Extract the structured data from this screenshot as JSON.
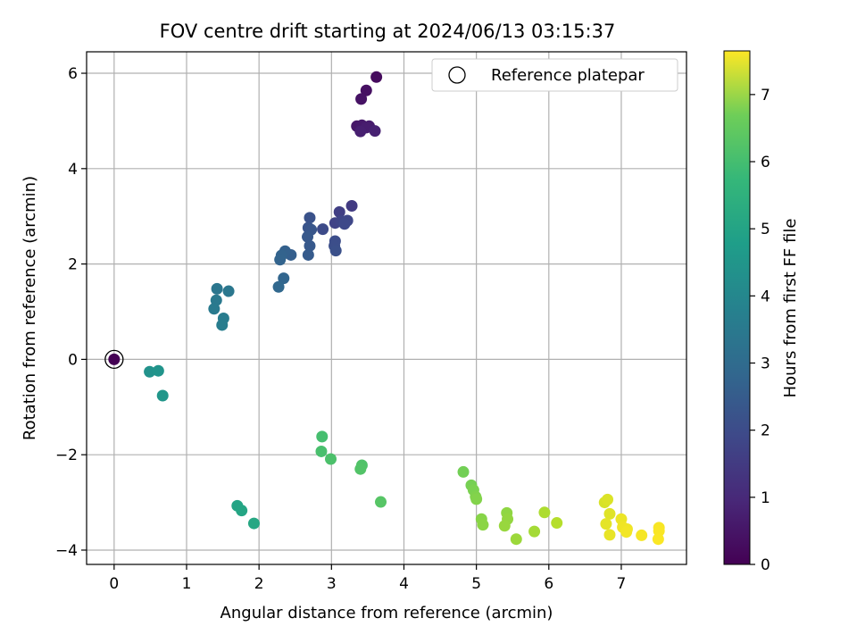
{
  "chart_data": {
    "type": "scatter",
    "title": "FOV centre drift starting at 2024/06/13 03:15:37",
    "xlabel": "Angular distance from reference (arcmin)",
    "ylabel": "Rotation from reference (arcmin)",
    "xlim": [
      -0.38,
      7.9
    ],
    "ylim": [
      -4.3,
      6.45
    ],
    "xticks": [
      0,
      1,
      2,
      3,
      4,
      5,
      6,
      7
    ],
    "yticks": [
      -4,
      -2,
      0,
      2,
      4,
      6
    ],
    "xtick_labels": [
      "0",
      "1",
      "2",
      "3",
      "4",
      "5",
      "6",
      "7"
    ],
    "ytick_labels": [
      "−4",
      "−2",
      "0",
      "2",
      "4",
      "6"
    ],
    "grid": true,
    "legend": {
      "label": "Reference platepar",
      "placement": "top-right"
    },
    "colorbar": {
      "label": "Hours from first FF file",
      "range": [
        0,
        7.65
      ],
      "ticks": [
        0,
        1,
        2,
        3,
        4,
        5,
        6,
        7
      ],
      "tick_labels": [
        "0",
        "1",
        "2",
        "3",
        "4",
        "5",
        "6",
        "7"
      ],
      "colormap": "viridis"
    },
    "reference_point": {
      "x": 0,
      "y": 0
    },
    "points": [
      {
        "x": 0.0,
        "y": 0.0,
        "c": 0.0
      },
      {
        "x": 3.62,
        "y": 5.92,
        "c": 0.22
      },
      {
        "x": 3.48,
        "y": 5.64,
        "c": 0.32
      },
      {
        "x": 3.41,
        "y": 5.46,
        "c": 0.38
      },
      {
        "x": 3.35,
        "y": 4.89,
        "c": 0.48
      },
      {
        "x": 3.42,
        "y": 4.91,
        "c": 0.52
      },
      {
        "x": 3.52,
        "y": 4.89,
        "c": 0.58
      },
      {
        "x": 3.48,
        "y": 4.86,
        "c": 0.62
      },
      {
        "x": 3.4,
        "y": 4.78,
        "c": 0.66
      },
      {
        "x": 3.6,
        "y": 4.79,
        "c": 0.7
      },
      {
        "x": 3.28,
        "y": 3.22,
        "c": 1.35
      },
      {
        "x": 3.11,
        "y": 3.09,
        "c": 1.45
      },
      {
        "x": 3.05,
        "y": 2.86,
        "c": 1.55
      },
      {
        "x": 3.13,
        "y": 2.9,
        "c": 1.6
      },
      {
        "x": 3.22,
        "y": 2.91,
        "c": 1.65
      },
      {
        "x": 3.18,
        "y": 2.84,
        "c": 1.7
      },
      {
        "x": 2.88,
        "y": 2.73,
        "c": 1.75
      },
      {
        "x": 3.05,
        "y": 2.48,
        "c": 1.8
      },
      {
        "x": 3.04,
        "y": 2.38,
        "c": 1.85
      },
      {
        "x": 3.06,
        "y": 2.28,
        "c": 1.9
      },
      {
        "x": 2.7,
        "y": 2.97,
        "c": 1.95
      },
      {
        "x": 2.68,
        "y": 2.76,
        "c": 2.0
      },
      {
        "x": 2.72,
        "y": 2.72,
        "c": 2.05
      },
      {
        "x": 2.67,
        "y": 2.57,
        "c": 2.1
      },
      {
        "x": 2.7,
        "y": 2.38,
        "c": 2.15
      },
      {
        "x": 2.68,
        "y": 2.19,
        "c": 2.2
      },
      {
        "x": 2.44,
        "y": 2.19,
        "c": 2.3
      },
      {
        "x": 2.36,
        "y": 2.27,
        "c": 2.35
      },
      {
        "x": 2.31,
        "y": 2.18,
        "c": 2.4
      },
      {
        "x": 2.29,
        "y": 2.09,
        "c": 2.45
      },
      {
        "x": 2.34,
        "y": 1.7,
        "c": 2.5
      },
      {
        "x": 2.27,
        "y": 1.52,
        "c": 2.55
      },
      {
        "x": 1.42,
        "y": 1.48,
        "c": 3.0
      },
      {
        "x": 1.58,
        "y": 1.43,
        "c": 3.05
      },
      {
        "x": 1.41,
        "y": 1.24,
        "c": 3.1
      },
      {
        "x": 1.38,
        "y": 1.06,
        "c": 3.15
      },
      {
        "x": 1.51,
        "y": 0.86,
        "c": 3.2
      },
      {
        "x": 1.49,
        "y": 0.72,
        "c": 3.25
      },
      {
        "x": 0.49,
        "y": -0.26,
        "c": 3.9
      },
      {
        "x": 0.61,
        "y": -0.24,
        "c": 3.95
      },
      {
        "x": 0.67,
        "y": -0.76,
        "c": 4.0
      },
      {
        "x": 1.7,
        "y": -3.07,
        "c": 4.45
      },
      {
        "x": 1.76,
        "y": -3.17,
        "c": 4.5
      },
      {
        "x": 1.93,
        "y": -3.44,
        "c": 4.55
      },
      {
        "x": 2.87,
        "y": -1.62,
        "c": 5.35
      },
      {
        "x": 2.86,
        "y": -1.93,
        "c": 5.4
      },
      {
        "x": 2.99,
        "y": -2.09,
        "c": 5.45
      },
      {
        "x": 3.42,
        "y": -2.22,
        "c": 5.5
      },
      {
        "x": 3.4,
        "y": -2.3,
        "c": 5.55
      },
      {
        "x": 3.68,
        "y": -2.99,
        "c": 5.6
      },
      {
        "x": 4.82,
        "y": -2.36,
        "c": 6.0
      },
      {
        "x": 4.93,
        "y": -2.64,
        "c": 6.05
      },
      {
        "x": 4.96,
        "y": -2.74,
        "c": 6.1
      },
      {
        "x": 4.99,
        "y": -2.88,
        "c": 6.15
      },
      {
        "x": 5.0,
        "y": -2.93,
        "c": 6.2
      },
      {
        "x": 5.07,
        "y": -3.35,
        "c": 6.25
      },
      {
        "x": 5.09,
        "y": -3.47,
        "c": 6.3
      },
      {
        "x": 5.42,
        "y": -3.22,
        "c": 6.35
      },
      {
        "x": 5.43,
        "y": -3.35,
        "c": 6.4
      },
      {
        "x": 5.39,
        "y": -3.49,
        "c": 6.45
      },
      {
        "x": 5.55,
        "y": -3.77,
        "c": 6.5
      },
      {
        "x": 5.8,
        "y": -3.61,
        "c": 6.6
      },
      {
        "x": 5.94,
        "y": -3.21,
        "c": 6.7
      },
      {
        "x": 6.11,
        "y": -3.43,
        "c": 6.8
      },
      {
        "x": 6.77,
        "y": -3.0,
        "c": 7.2
      },
      {
        "x": 6.81,
        "y": -2.94,
        "c": 7.25
      },
      {
        "x": 6.84,
        "y": -3.24,
        "c": 7.3
      },
      {
        "x": 6.79,
        "y": -3.45,
        "c": 7.35
      },
      {
        "x": 6.84,
        "y": -3.68,
        "c": 7.4
      },
      {
        "x": 7.0,
        "y": -3.35,
        "c": 7.45
      },
      {
        "x": 7.02,
        "y": -3.52,
        "c": 7.48
      },
      {
        "x": 7.08,
        "y": -3.56,
        "c": 7.5
      },
      {
        "x": 7.07,
        "y": -3.62,
        "c": 7.52
      },
      {
        "x": 7.28,
        "y": -3.69,
        "c": 7.55
      },
      {
        "x": 7.52,
        "y": -3.53,
        "c": 7.58
      },
      {
        "x": 7.52,
        "y": -3.6,
        "c": 7.6
      },
      {
        "x": 7.51,
        "y": -3.77,
        "c": 7.62
      }
    ]
  }
}
